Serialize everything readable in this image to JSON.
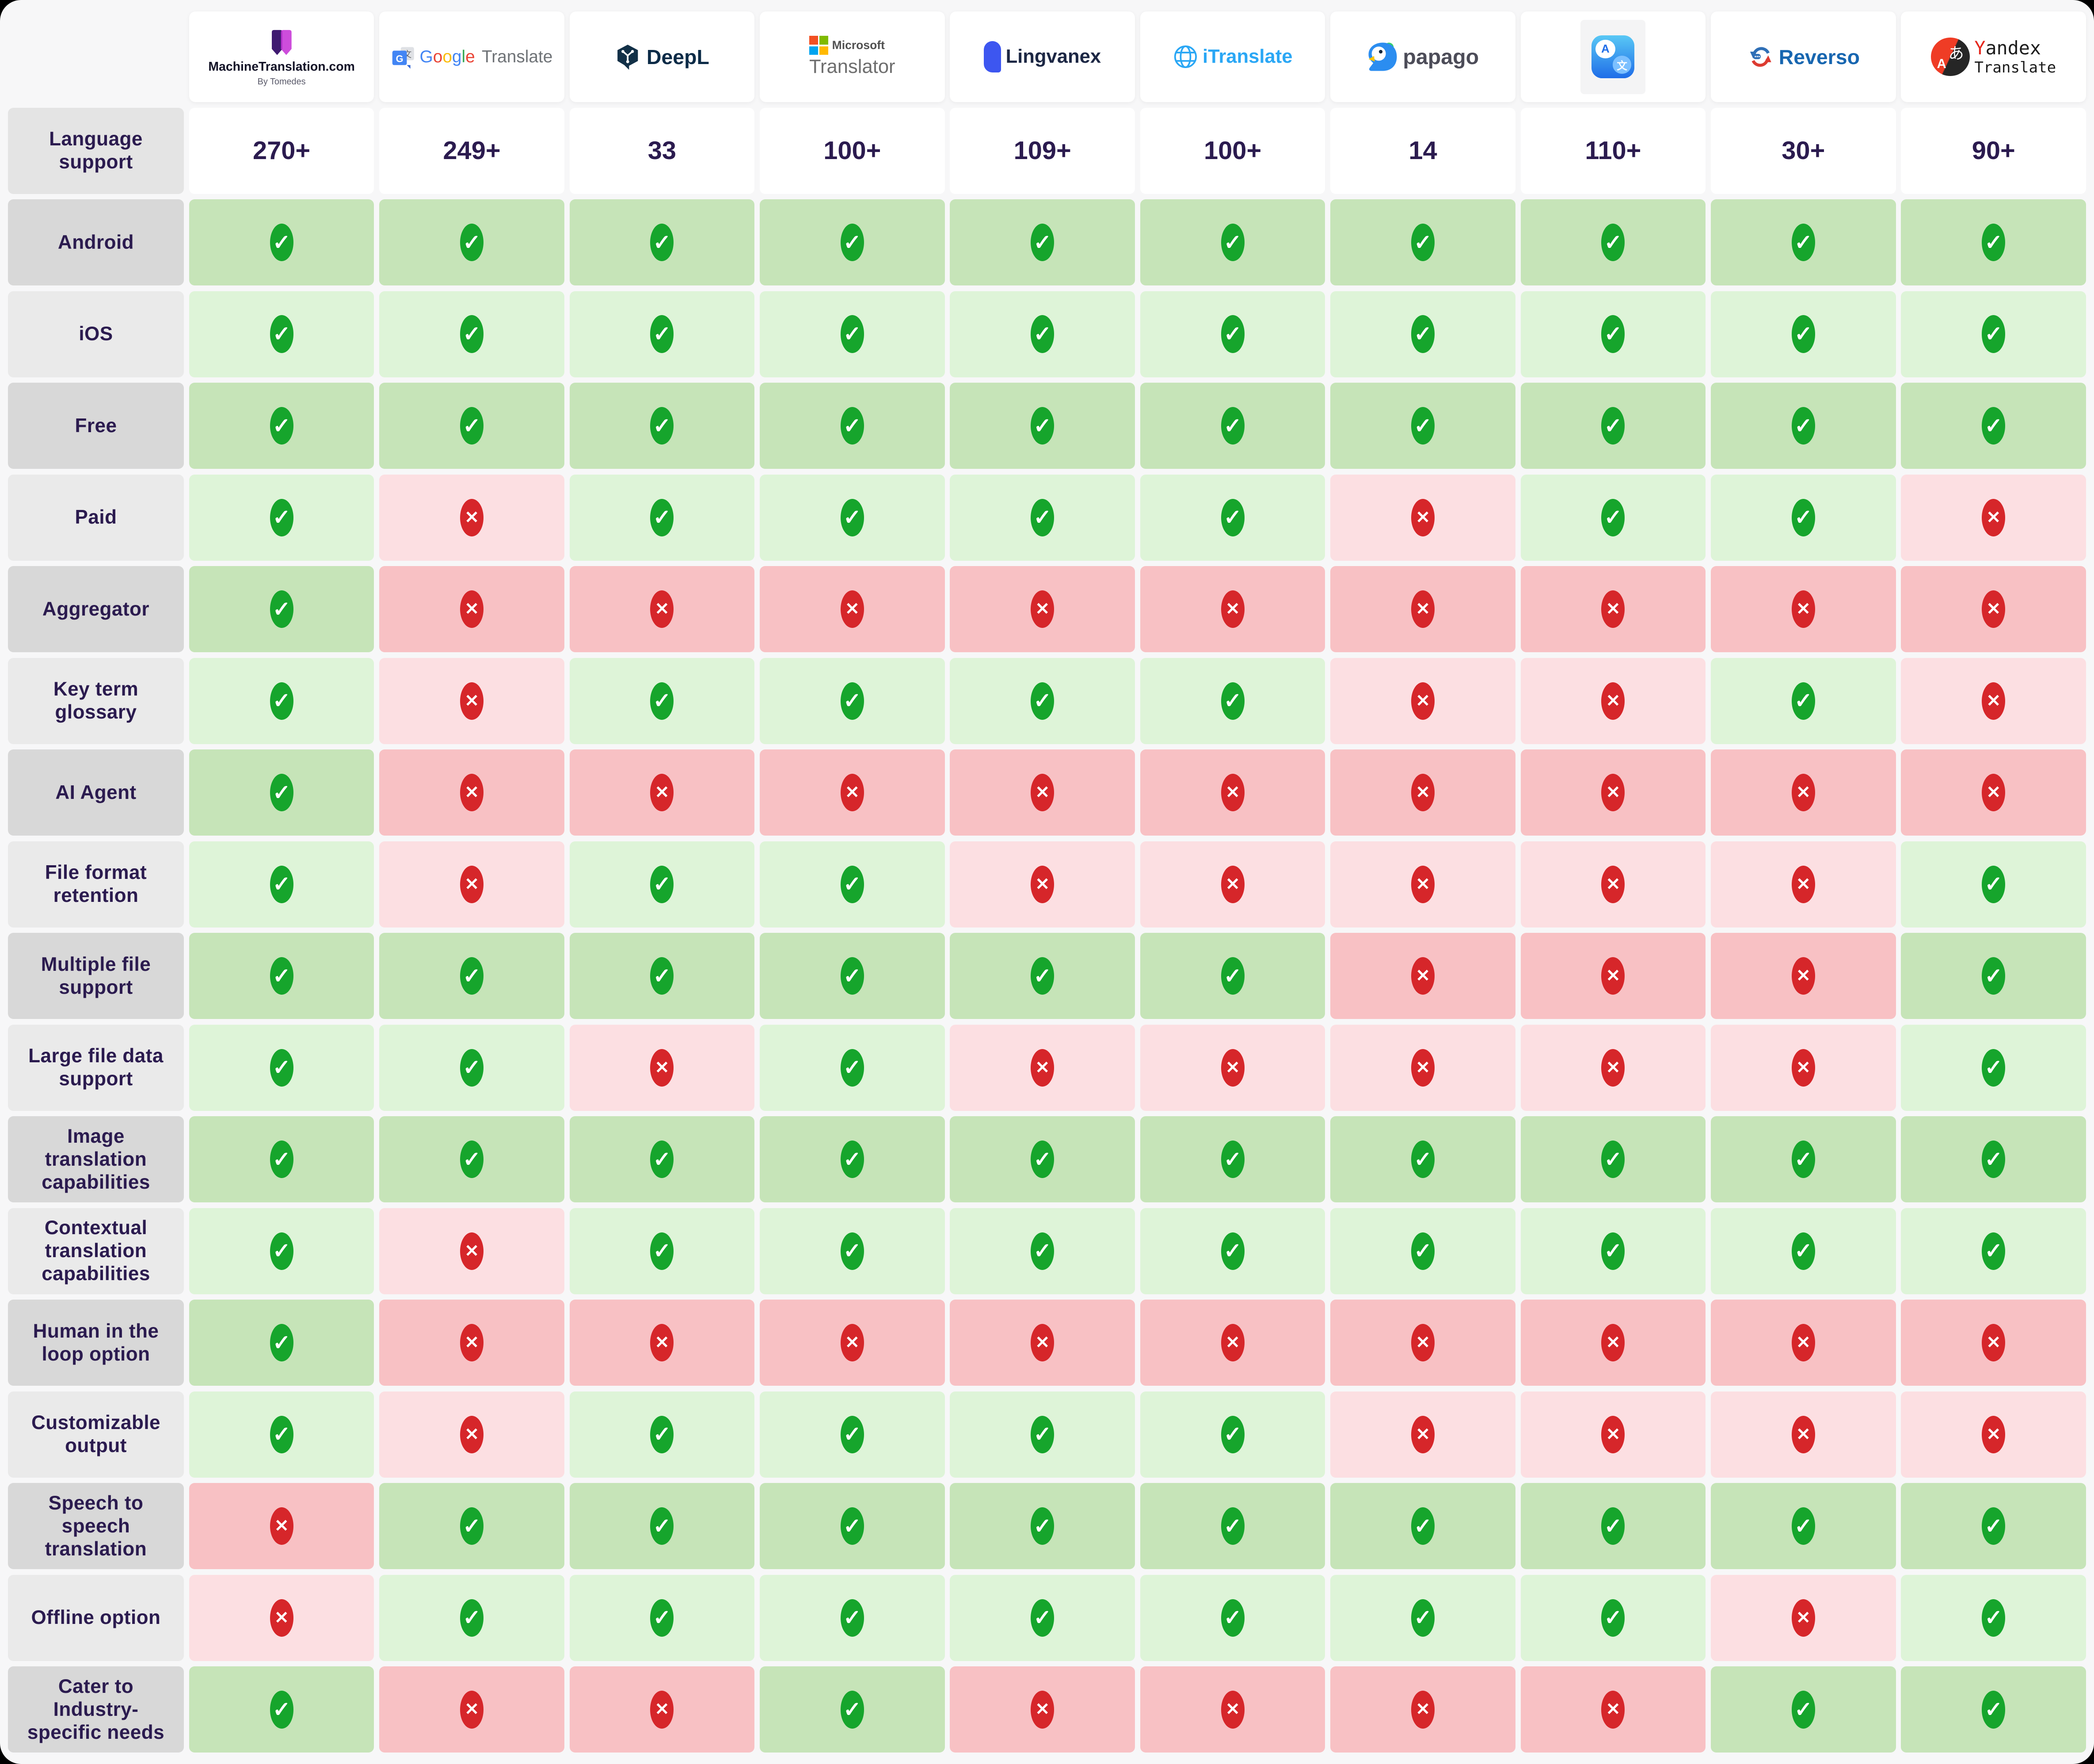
{
  "chart_data": {
    "type": "table",
    "columns": [
      "MachineTranslation.com",
      "Google Translate",
      "DeepL",
      "Microsoft Translator",
      "Lingvanex",
      "iTranslate",
      "Papago",
      "Apple Translate",
      "Reverso",
      "Yandex Translate"
    ],
    "language_support": {
      "label": "Language support",
      "values": [
        "270+",
        "249+",
        "33",
        "100+",
        "109+",
        "100+",
        "14",
        "110+",
        "30+",
        "90+"
      ]
    },
    "features": [
      {
        "label": "Android",
        "values": [
          1,
          1,
          1,
          1,
          1,
          1,
          1,
          1,
          1,
          1
        ]
      },
      {
        "label": "iOS",
        "values": [
          1,
          1,
          1,
          1,
          1,
          1,
          1,
          1,
          1,
          1
        ]
      },
      {
        "label": "Free",
        "values": [
          1,
          1,
          1,
          1,
          1,
          1,
          1,
          1,
          1,
          1
        ]
      },
      {
        "label": "Paid",
        "values": [
          1,
          0,
          1,
          1,
          1,
          1,
          0,
          1,
          1,
          0
        ]
      },
      {
        "label": "Aggregator",
        "values": [
          1,
          0,
          0,
          0,
          0,
          0,
          0,
          0,
          0,
          0
        ]
      },
      {
        "label": "Key term glossary",
        "values": [
          1,
          0,
          1,
          1,
          1,
          1,
          0,
          0,
          1,
          0
        ]
      },
      {
        "label": "AI Agent",
        "values": [
          1,
          0,
          0,
          0,
          0,
          0,
          0,
          0,
          0,
          0
        ]
      },
      {
        "label": "File format retention",
        "values": [
          1,
          0,
          1,
          1,
          0,
          0,
          0,
          0,
          0,
          1
        ]
      },
      {
        "label": "Multiple file support",
        "values": [
          1,
          1,
          1,
          1,
          1,
          1,
          0,
          0,
          0,
          1
        ]
      },
      {
        "label": "Large file data support",
        "values": [
          1,
          1,
          0,
          1,
          0,
          0,
          0,
          0,
          0,
          1
        ]
      },
      {
        "label": "Image translation capabilities",
        "values": [
          1,
          1,
          1,
          1,
          1,
          1,
          1,
          1,
          1,
          1
        ]
      },
      {
        "label": "Contextual translation capabilities",
        "values": [
          1,
          0,
          1,
          1,
          1,
          1,
          1,
          1,
          1,
          1
        ]
      },
      {
        "label": "Human in the loop option",
        "values": [
          1,
          0,
          0,
          0,
          0,
          0,
          0,
          0,
          0,
          0
        ]
      },
      {
        "label": "Customizable output",
        "values": [
          1,
          0,
          1,
          1,
          1,
          1,
          0,
          0,
          0,
          0
        ]
      },
      {
        "label": "Speech to speech translation",
        "values": [
          0,
          1,
          1,
          1,
          1,
          1,
          1,
          1,
          1,
          1
        ]
      },
      {
        "label": "Offline option",
        "values": [
          0,
          1,
          1,
          1,
          1,
          1,
          1,
          1,
          0,
          1
        ]
      },
      {
        "label": "Cater to Industry-specific needs",
        "values": [
          1,
          0,
          0,
          1,
          0,
          0,
          0,
          0,
          1,
          1
        ]
      }
    ],
    "legend": {
      "supported": "✓",
      "not_supported": "✕"
    }
  },
  "logos": [
    {
      "name": "MachineTranslation.com",
      "line1": "MachineTranslation.com",
      "line2": "By Tomedes"
    },
    {
      "name": "Google Translate",
      "brand": "Google",
      "brand_colors": [
        "#4285f4",
        "#ea4335",
        "#fbbc05",
        "#4285f4",
        "#34a853",
        "#ea4335"
      ],
      "text": "Translate",
      "icon_g": "G",
      "icon_zh": "文"
    },
    {
      "name": "DeepL",
      "text": "DeepL"
    },
    {
      "name": "Microsoft Translator",
      "line1": "Microsoft",
      "line2": "Translator"
    },
    {
      "name": "Lingvanex",
      "text": "Lingvanex"
    },
    {
      "name": "iTranslate",
      "text": "iTranslate"
    },
    {
      "name": "Papago",
      "text": "papago"
    },
    {
      "name": "Apple Translate",
      "icon_a": "A",
      "icon_zh": "文"
    },
    {
      "name": "Reverso",
      "text": "Reverso"
    },
    {
      "name": "Yandex Translate",
      "y": "Y",
      "rest": "andex",
      "line2": "Translate",
      "icon_a": "A",
      "icon_ja": "あ"
    }
  ],
  "colors": {
    "page_bg": "#f7f7f8",
    "navy_text": "#2b1b4f",
    "green_row_dark": "#c6e4b8",
    "green_row_light": "#def4d8",
    "red_row_dark": "#f8c1c4",
    "red_row_light": "#fcdfe2",
    "label_dark": "#d8d8d8",
    "label_light": "#eaeaea",
    "label_header": "#e4e4e4",
    "check": "#16a52c",
    "cross": "#d6262a"
  }
}
